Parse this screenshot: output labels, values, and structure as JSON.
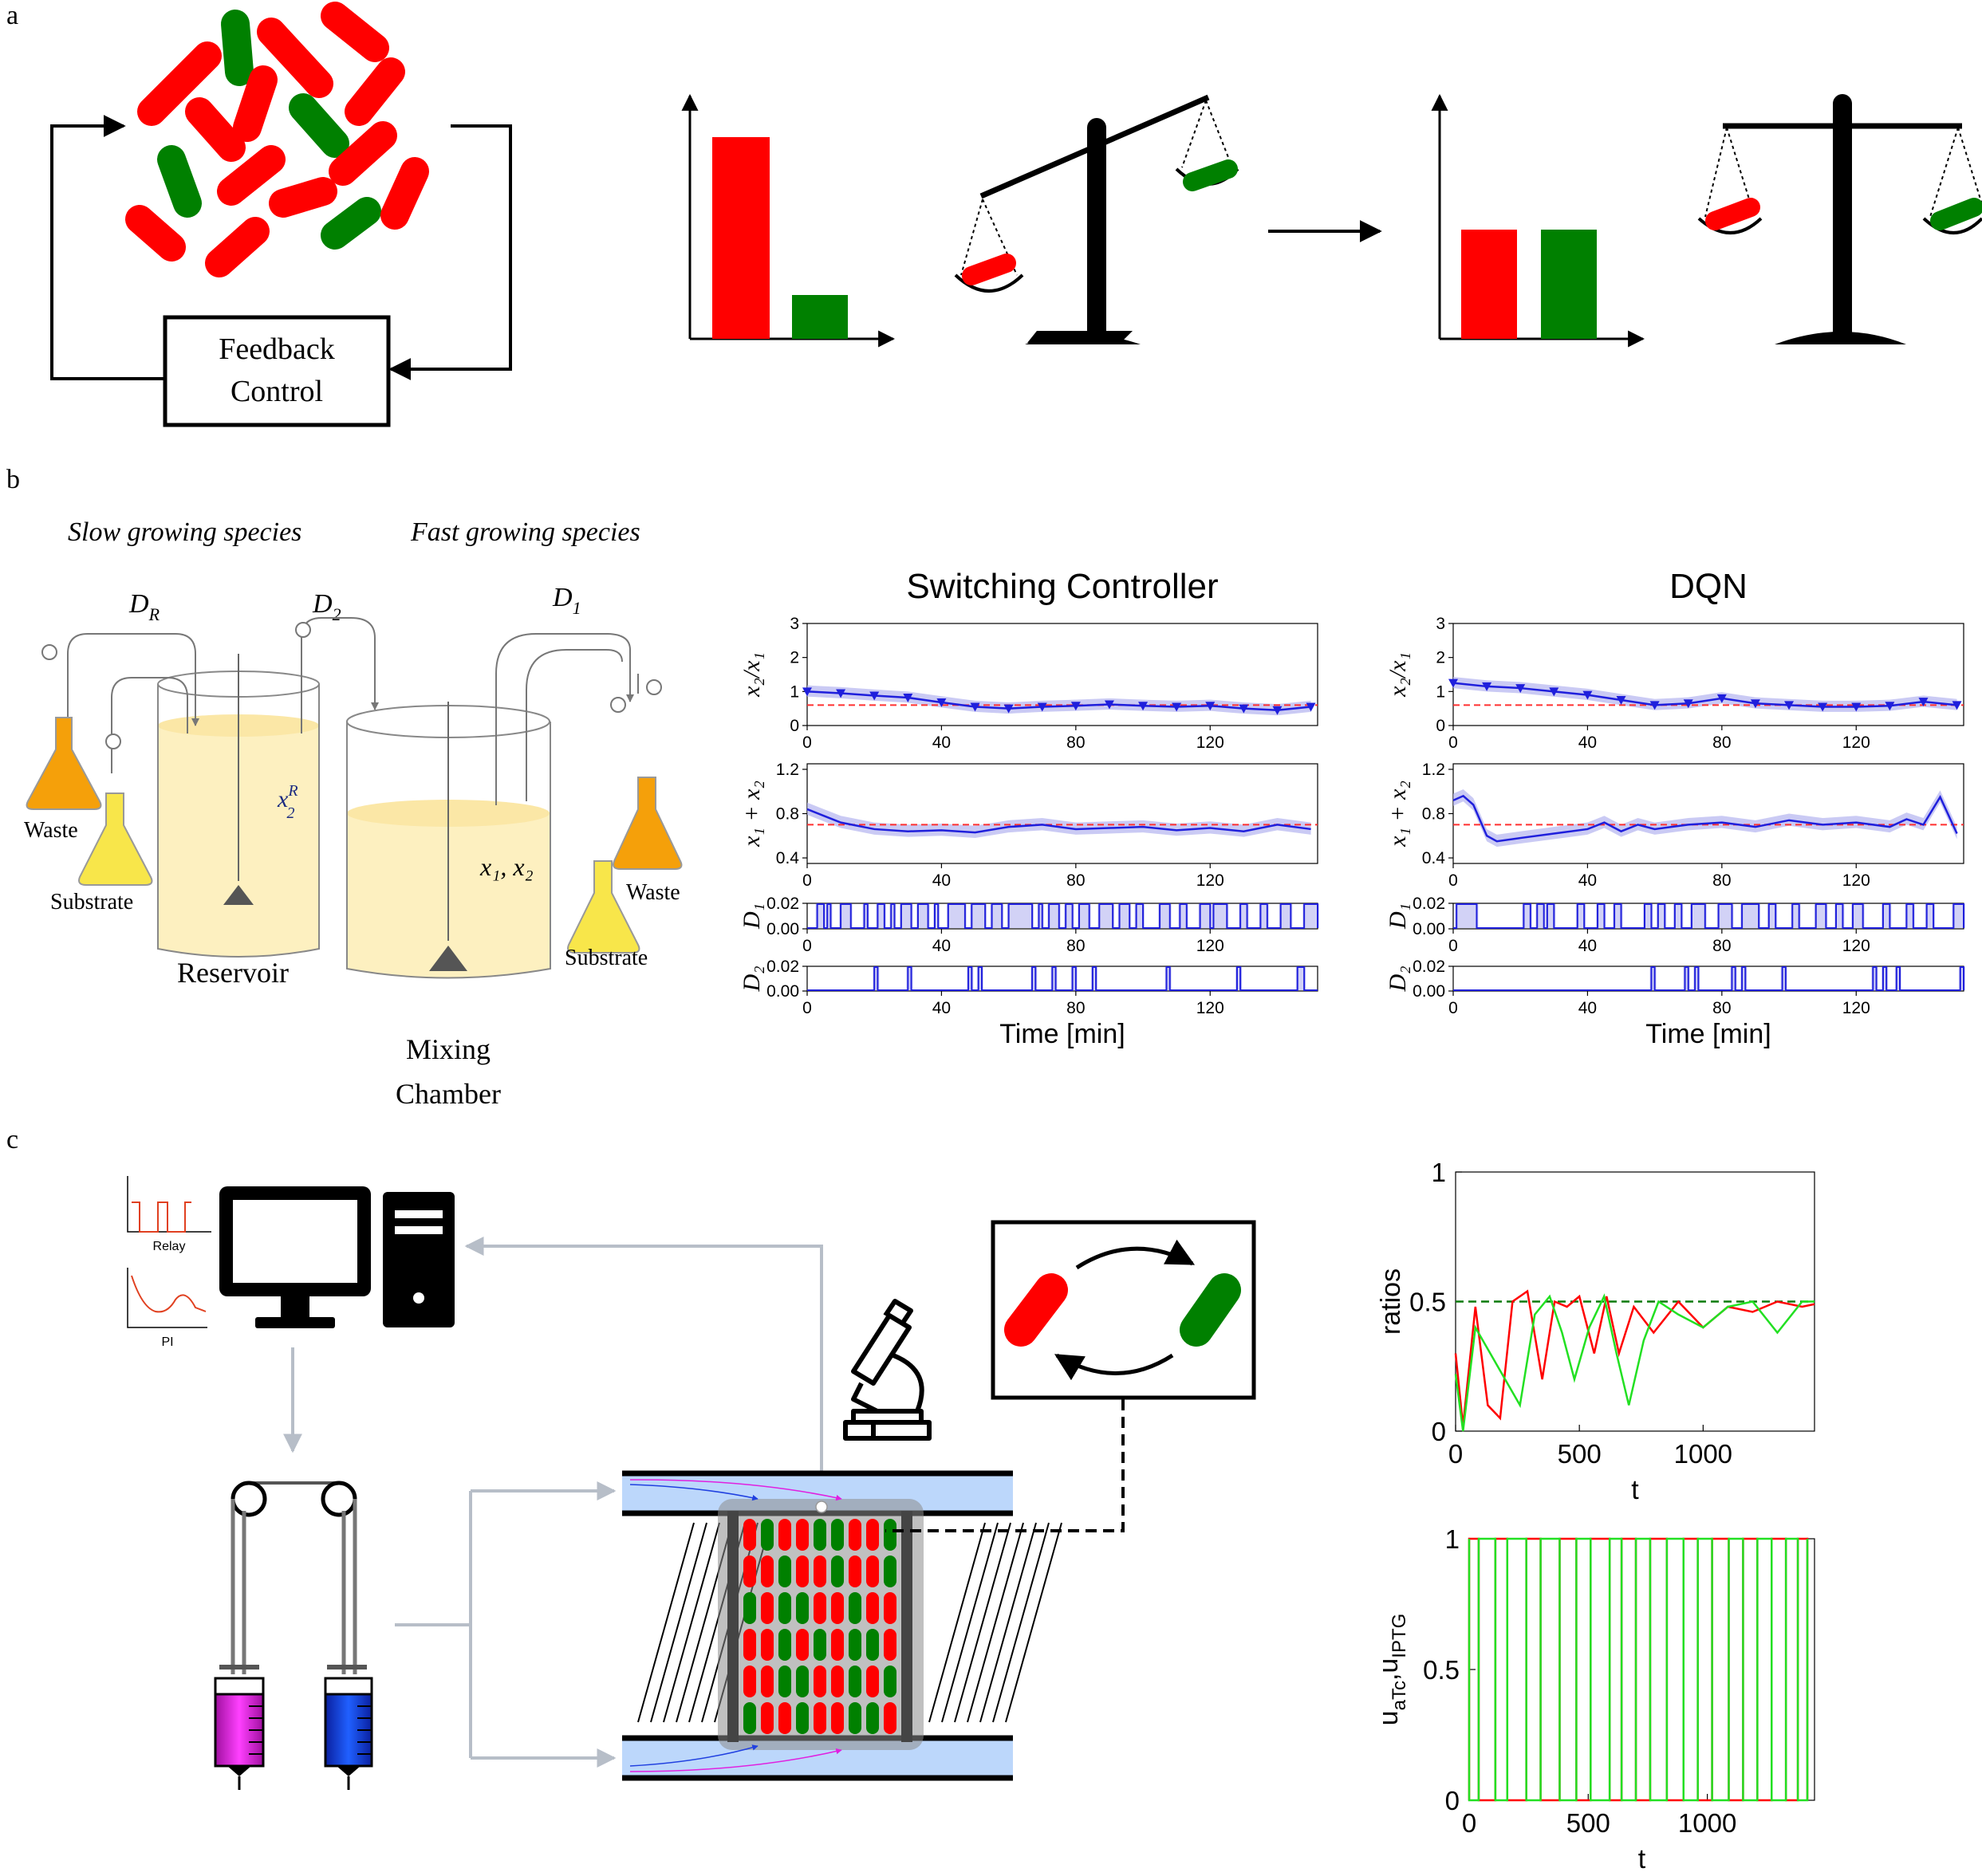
{
  "panels": {
    "a": {
      "letter": "a",
      "feedback_lines": [
        "Feedback",
        "Control"
      ]
    },
    "b": {
      "letter": "b",
      "slow_label": "Slow growing species",
      "fast_label": "Fast growing species",
      "pump_labels": {
        "dr": "D",
        "dr_sub": "R",
        "d2": "D",
        "d2_sub": "2",
        "d1": "D",
        "d1_sub": "1"
      },
      "reservoir_var": {
        "base": "x",
        "sup": "R",
        "sub": "2"
      },
      "chamber_var": "x₁, x₂",
      "waste_label": "Waste",
      "substrate_label": "Substrate",
      "reservoir_label": "Reservoir",
      "chamber_lines": [
        "Mixing",
        "Chamber"
      ]
    },
    "c": {
      "letter": "c",
      "relay_label": "Relay",
      "pi_label": "PI"
    }
  },
  "colors": {
    "red": "#ff0000",
    "green": "#008000",
    "blue_line": "#1f1fdc",
    "blue_band": "#b4b4f0",
    "ref_line": "#ff3030",
    "orange_flask": "#f5a00a",
    "yellow_flask": "#f8e64a",
    "medium": "#fdf0c0",
    "channel": "#bcd7fb"
  },
  "chart_data": [
    {
      "type": "line",
      "title": "Switching Controller",
      "xlabel": "Time [min]",
      "xlim": [
        0,
        152
      ],
      "xticks": [
        0,
        40,
        80,
        120
      ],
      "subplots": [
        {
          "ylabel": "x₂/x₁",
          "ylim": [
            0,
            3
          ],
          "yticks": [
            "0",
            "1",
            "2",
            "3"
          ],
          "reference": 0.6,
          "x": [
            0,
            10,
            20,
            30,
            40,
            50,
            60,
            70,
            80,
            90,
            100,
            110,
            120,
            130,
            140,
            150
          ],
          "y": [
            1.0,
            0.95,
            0.88,
            0.82,
            0.68,
            0.55,
            0.5,
            0.55,
            0.58,
            0.62,
            0.58,
            0.55,
            0.58,
            0.5,
            0.45,
            0.55
          ]
        },
        {
          "ylabel": "x₁ + x₂",
          "ylim": [
            0.35,
            1.25
          ],
          "yticks": [
            "0.4",
            "0.8",
            "1.2"
          ],
          "reference": 0.7,
          "x": [
            0,
            5,
            10,
            20,
            30,
            40,
            50,
            60,
            70,
            80,
            90,
            100,
            110,
            120,
            130,
            140,
            150
          ],
          "y": [
            0.84,
            0.78,
            0.72,
            0.66,
            0.64,
            0.65,
            0.63,
            0.68,
            0.7,
            0.66,
            0.67,
            0.68,
            0.65,
            0.67,
            0.64,
            0.7,
            0.66
          ]
        },
        {
          "ylabel": "D₁",
          "ylim": [
            0,
            0.02
          ],
          "yticks": [
            "0.00",
            "0.02"
          ],
          "on_intervals": [
            [
              3,
              5
            ],
            [
              6,
              7
            ],
            [
              10,
              13
            ],
            [
              17,
              18
            ],
            [
              21,
              23
            ],
            [
              25,
              26
            ],
            [
              28,
              31
            ],
            [
              33,
              36
            ],
            [
              38,
              39
            ],
            [
              42,
              47
            ],
            [
              49,
              53
            ],
            [
              55,
              58
            ],
            [
              60,
              67
            ],
            [
              69,
              70
            ],
            [
              72,
              75
            ],
            [
              77,
              79
            ],
            [
              81,
              84
            ],
            [
              87,
              91
            ],
            [
              93,
              96
            ],
            [
              98,
              100
            ],
            [
              105,
              108
            ],
            [
              111,
              113
            ],
            [
              117,
              120
            ],
            [
              121,
              125
            ],
            [
              129,
              131
            ],
            [
              135,
              137
            ],
            [
              141,
              144
            ],
            [
              148,
              152
            ]
          ]
        },
        {
          "ylabel": "D₂",
          "ylim": [
            0,
            0.02
          ],
          "yticks": [
            "0.00",
            "0.02"
          ],
          "on_intervals": [
            [
              20,
              21
            ],
            [
              30,
              31
            ],
            [
              48,
              49
            ],
            [
              51,
              52
            ],
            [
              67,
              68
            ],
            [
              73,
              74
            ],
            [
              79,
              80
            ],
            [
              85,
              86
            ],
            [
              107,
              108
            ],
            [
              128,
              129
            ],
            [
              146,
              148
            ]
          ]
        }
      ]
    },
    {
      "type": "line",
      "title": "DQN",
      "xlabel": "Time [min]",
      "xlim": [
        0,
        152
      ],
      "xticks": [
        0,
        40,
        80,
        120
      ],
      "subplots": [
        {
          "ylabel": "x₂/x₁",
          "ylim": [
            0,
            3
          ],
          "yticks": [
            "0",
            "1",
            "2",
            "3"
          ],
          "reference": 0.6,
          "x": [
            0,
            10,
            20,
            30,
            40,
            50,
            60,
            70,
            80,
            90,
            100,
            110,
            120,
            130,
            140,
            150
          ],
          "y": [
            1.25,
            1.15,
            1.1,
            1.0,
            0.9,
            0.75,
            0.6,
            0.65,
            0.8,
            0.65,
            0.6,
            0.55,
            0.55,
            0.58,
            0.7,
            0.6
          ]
        },
        {
          "ylabel": "x₁ + x₂",
          "ylim": [
            0.35,
            1.25
          ],
          "yticks": [
            "0.4",
            "0.8",
            "1.2"
          ],
          "reference": 0.7,
          "x": [
            0,
            3,
            6,
            10,
            13,
            20,
            30,
            40,
            45,
            50,
            55,
            60,
            65,
            70,
            80,
            90,
            100,
            110,
            120,
            130,
            135,
            140,
            145,
            150
          ],
          "y": [
            0.92,
            0.96,
            0.88,
            0.6,
            0.55,
            0.58,
            0.62,
            0.66,
            0.72,
            0.64,
            0.7,
            0.66,
            0.68,
            0.7,
            0.72,
            0.68,
            0.74,
            0.7,
            0.72,
            0.68,
            0.75,
            0.7,
            0.95,
            0.62
          ]
        },
        {
          "ylabel": "D₁",
          "ylim": [
            0,
            0.02
          ],
          "yticks": [
            "0.00",
            "0.02"
          ],
          "on_intervals": [
            [
              1,
              7
            ],
            [
              21,
              23
            ],
            [
              25,
              27
            ],
            [
              28,
              30
            ],
            [
              37,
              39
            ],
            [
              43,
              45
            ],
            [
              48,
              50
            ],
            [
              57,
              59
            ],
            [
              61,
              63
            ],
            [
              66,
              68
            ],
            [
              71,
              75
            ],
            [
              79,
              83
            ],
            [
              86,
              91
            ],
            [
              94,
              96
            ],
            [
              101,
              103
            ],
            [
              108,
              111
            ],
            [
              114,
              116
            ],
            [
              119,
              122
            ],
            [
              128,
              130
            ],
            [
              135,
              137
            ],
            [
              141,
              143
            ],
            [
              149,
              152
            ]
          ]
        },
        {
          "ylabel": "D₂",
          "ylim": [
            0,
            0.02
          ],
          "yticks": [
            "0.00",
            "0.02"
          ],
          "on_intervals": [
            [
              59,
              60
            ],
            [
              69,
              70
            ],
            [
              72,
              73
            ],
            [
              83,
              84
            ],
            [
              86,
              87
            ],
            [
              98,
              99
            ],
            [
              125,
              126
            ],
            [
              128,
              129
            ],
            [
              132,
              133
            ],
            [
              151,
              152
            ]
          ]
        }
      ]
    },
    {
      "type": "line",
      "title": "",
      "xlabel": "t",
      "ylabel": "ratios",
      "xlim": [
        0,
        1450
      ],
      "ylim": [
        0,
        1
      ],
      "xticks": [
        0,
        500,
        1000
      ],
      "yticks": [
        "0",
        "0.5",
        "1"
      ],
      "reference": 0.5,
      "series": [
        {
          "color": "red",
          "x": [
            0,
            30,
            80,
            130,
            180,
            230,
            290,
            350,
            400,
            450,
            500,
            560,
            610,
            660,
            720,
            800,
            900,
            1000,
            1100,
            1200,
            1300,
            1400,
            1450
          ],
          "y": [
            0.3,
            0.02,
            0.48,
            0.1,
            0.05,
            0.5,
            0.54,
            0.2,
            0.5,
            0.48,
            0.52,
            0.3,
            0.52,
            0.3,
            0.48,
            0.38,
            0.5,
            0.4,
            0.48,
            0.46,
            0.5,
            0.48,
            0.49
          ]
        },
        {
          "color": "green",
          "x": [
            0,
            30,
            80,
            140,
            200,
            260,
            320,
            380,
            430,
            480,
            540,
            600,
            650,
            700,
            760,
            820,
            900,
            1000,
            1100,
            1200,
            1300,
            1400,
            1450
          ],
          "y": [
            0.22,
            0.0,
            0.4,
            0.3,
            0.2,
            0.1,
            0.45,
            0.52,
            0.38,
            0.2,
            0.4,
            0.52,
            0.3,
            0.1,
            0.35,
            0.5,
            0.45,
            0.4,
            0.48,
            0.5,
            0.38,
            0.5,
            0.5
          ]
        }
      ]
    },
    {
      "type": "line",
      "title": "",
      "xlabel": "t",
      "ylabel": "uₐₜ꜀, uᴵᴾᵀᴳ",
      "ylabel_parts": {
        "u1": "u",
        "s1": "aTc",
        "sep": ",",
        "u2": "u",
        "s2": "IPTG"
      },
      "xlim": [
        0,
        1450
      ],
      "ylim": [
        0,
        1
      ],
      "xticks": [
        0,
        500,
        1000
      ],
      "yticks": [
        "0",
        "0.5",
        "1"
      ],
      "series": [
        {
          "color": "red",
          "switch_times": [
            0,
            40,
            110,
            160,
            240,
            300,
            380,
            450,
            510,
            590,
            640,
            700,
            760,
            830,
            900,
            960,
            1020,
            1090,
            1150,
            1210,
            1270,
            1330,
            1380,
            1420
          ]
        },
        {
          "color": "green",
          "switch_times": [
            0,
            40,
            110,
            160,
            240,
            300,
            380,
            450,
            510,
            590,
            640,
            700,
            760,
            830,
            900,
            960,
            1020,
            1090,
            1150,
            1210,
            1270,
            1330,
            1380,
            1420
          ]
        }
      ]
    }
  ]
}
